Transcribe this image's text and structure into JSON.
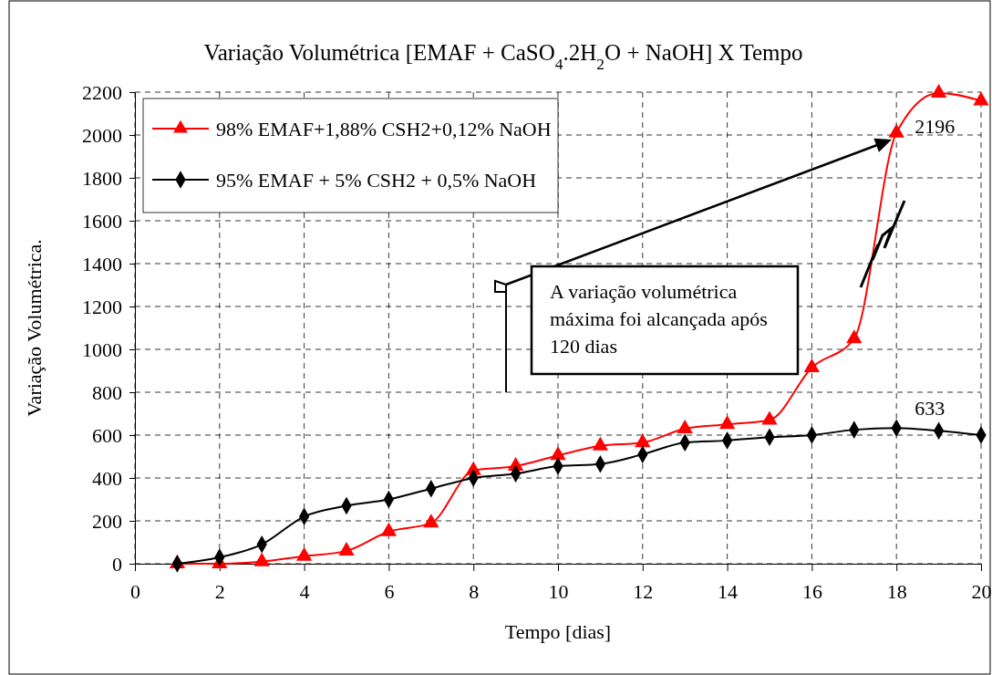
{
  "chart_data": {
    "type": "line",
    "title": "Variação Volumétrica [EMAF + CaSO$_{4}$.2H$_{2}$O + NaOH] X Tempo",
    "xlabel": "Tempo [dias]",
    "ylabel": "Variação Volumétrica.",
    "x": [
      1,
      2,
      3,
      4,
      5,
      6,
      7,
      8,
      9,
      10,
      11,
      12,
      13,
      14,
      15,
      16,
      17,
      18,
      19,
      20
    ],
    "series": [
      {
        "name": "98% EMAF+1,88% CSH2+0,12% NaOH",
        "color": "#ff0000",
        "marker": "triangle",
        "values": [
          0,
          0,
          10,
          35,
          60,
          150,
          190,
          435,
          455,
          505,
          550,
          565,
          630,
          650,
          670,
          915,
          1050,
          2010,
          2196,
          2160
        ]
      },
      {
        "name": "95% EMAF + 5% CSH2 + 0,5% NaOH",
        "color": "#000000",
        "marker": "diamond",
        "values": [
          0,
          30,
          90,
          220,
          270,
          300,
          350,
          400,
          420,
          455,
          465,
          510,
          565,
          575,
          590,
          600,
          625,
          633,
          620,
          600
        ]
      }
    ],
    "xlim": [
      0,
      20
    ],
    "xticks": [
      0,
      2,
      4,
      6,
      8,
      10,
      12,
      14,
      16,
      18,
      20
    ],
    "ylim": [
      0,
      2200
    ],
    "yticks": [
      0,
      200,
      400,
      600,
      800,
      1000,
      1200,
      1400,
      1600,
      1800,
      2000,
      2200
    ],
    "grid": true,
    "legend": "top left",
    "line_style": "solid",
    "annotations": [
      {
        "text": "2196",
        "x": 18,
        "y": 2010
      },
      {
        "text": "633",
        "x": 18,
        "y": 633
      },
      "A variação volumétrica máxima foi alcançada após 120 dias"
    ]
  }
}
